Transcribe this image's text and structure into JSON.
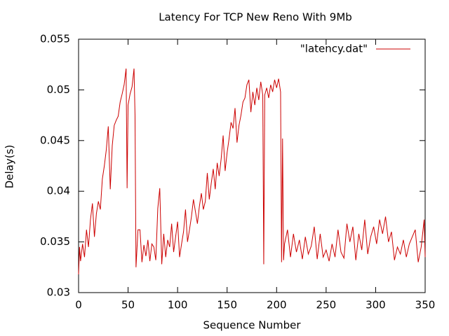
{
  "chart_data": {
    "type": "line",
    "title": "Latency For TCP New Reno With 9Mb",
    "x_label": "Sequence Number",
    "y_label": "Delay(s)",
    "xlim": [
      0,
      350
    ],
    "xticks": [
      0,
      50,
      100,
      150,
      200,
      250,
      300,
      350
    ],
    "ylim": [
      0.03,
      0.055
    ],
    "yticks": [
      0.03,
      0.035,
      0.04,
      0.045,
      0.05,
      0.055
    ],
    "legend": "top-right",
    "x": [
      0,
      1,
      2,
      4,
      6,
      8,
      10,
      12,
      14,
      16,
      18,
      20,
      22,
      24,
      26,
      28,
      30,
      32,
      34,
      36,
      38,
      40,
      42,
      44,
      46,
      48,
      49,
      50,
      52,
      54,
      56,
      57,
      58,
      60,
      62,
      64,
      66,
      68,
      70,
      72,
      74,
      76,
      78,
      80,
      82,
      84,
      86,
      88,
      90,
      92,
      94,
      96,
      98,
      100,
      102,
      104,
      106,
      108,
      110,
      112,
      114,
      116,
      118,
      120,
      122,
      124,
      126,
      128,
      130,
      132,
      134,
      136,
      138,
      140,
      142,
      144,
      146,
      148,
      150,
      152,
      154,
      156,
      158,
      160,
      162,
      164,
      166,
      168,
      170,
      172,
      174,
      176,
      178,
      180,
      182,
      184,
      186,
      187,
      188,
      190,
      192,
      194,
      196,
      198,
      200,
      202,
      204,
      205,
      206,
      207,
      208,
      211,
      214,
      217,
      220,
      223,
      226,
      229,
      232,
      235,
      238,
      241,
      244,
      247,
      250,
      253,
      256,
      259,
      262,
      265,
      268,
      271,
      274,
      277,
      280,
      283,
      286,
      289,
      292,
      295,
      298,
      301,
      304,
      307,
      310,
      313,
      316,
      319,
      322,
      325,
      328,
      331,
      334,
      337,
      340,
      343,
      346,
      349,
      350
    ],
    "series": [
      {
        "name": "\"latency.dat\"",
        "color": "#cc0000",
        "values": [
          0.0318,
          0.0345,
          0.0331,
          0.0348,
          0.0335,
          0.0362,
          0.0345,
          0.0372,
          0.0388,
          0.0355,
          0.0378,
          0.039,
          0.0382,
          0.0412,
          0.0425,
          0.0441,
          0.0464,
          0.0402,
          0.0445,
          0.0465,
          0.047,
          0.0474,
          0.0488,
          0.0496,
          0.0505,
          0.0521,
          0.0403,
          0.0485,
          0.0496,
          0.0503,
          0.0521,
          0.0475,
          0.0325,
          0.0362,
          0.0362,
          0.033,
          0.0347,
          0.0336,
          0.0352,
          0.0331,
          0.0348,
          0.0345,
          0.0332,
          0.0383,
          0.0403,
          0.0328,
          0.0358,
          0.0335,
          0.0352,
          0.0345,
          0.0368,
          0.034,
          0.0355,
          0.037,
          0.0335,
          0.0348,
          0.036,
          0.0382,
          0.035,
          0.0362,
          0.0375,
          0.0392,
          0.038,
          0.0368,
          0.0385,
          0.0398,
          0.0382,
          0.039,
          0.0418,
          0.0392,
          0.0408,
          0.0422,
          0.0402,
          0.0428,
          0.0415,
          0.0432,
          0.0455,
          0.042,
          0.0438,
          0.0452,
          0.0468,
          0.0462,
          0.0482,
          0.0448,
          0.0465,
          0.0475,
          0.0488,
          0.0492,
          0.0505,
          0.051,
          0.0478,
          0.0498,
          0.0485,
          0.0502,
          0.049,
          0.0508,
          0.0495,
          0.0328,
          0.0495,
          0.0502,
          0.0492,
          0.0505,
          0.0498,
          0.051,
          0.0502,
          0.0511,
          0.0498,
          0.033,
          0.0452,
          0.0332,
          0.0348,
          0.0362,
          0.0335,
          0.0358,
          0.034,
          0.0352,
          0.0333,
          0.0355,
          0.0338,
          0.0346,
          0.0365,
          0.0333,
          0.0358,
          0.0335,
          0.0342,
          0.0331,
          0.0348,
          0.0335,
          0.0362,
          0.034,
          0.0334,
          0.0368,
          0.035,
          0.0365,
          0.0332,
          0.0358,
          0.0342,
          0.0372,
          0.0338,
          0.0355,
          0.0365,
          0.0348,
          0.0372,
          0.0358,
          0.0375,
          0.035,
          0.036,
          0.0332,
          0.0345,
          0.0338,
          0.0352,
          0.0335,
          0.0348,
          0.0355,
          0.0362,
          0.033,
          0.0345,
          0.0372,
          0.0335
        ]
      }
    ]
  }
}
